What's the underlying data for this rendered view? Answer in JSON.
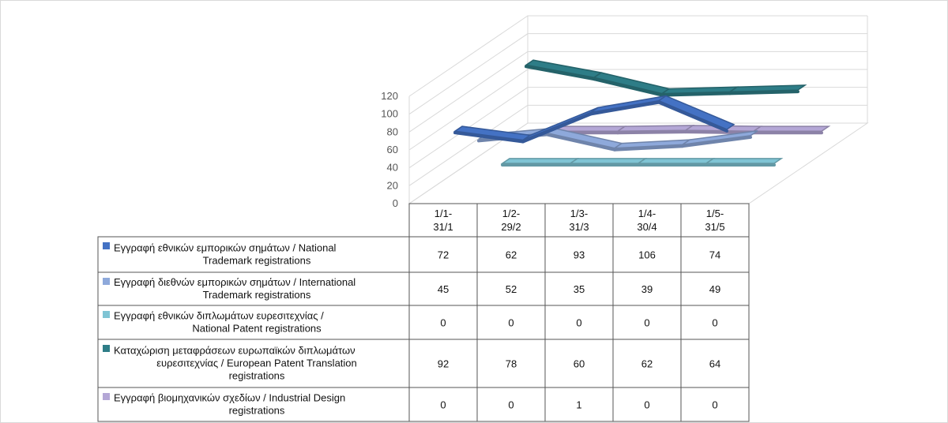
{
  "chart_data": {
    "type": "line",
    "style": "3d-ribbon-with-data-table",
    "title": "",
    "xlabel": "",
    "ylabel": "",
    "ylim": [
      0,
      120
    ],
    "yticks": [
      "0",
      "20",
      "40",
      "60",
      "80",
      "100",
      "120"
    ],
    "categories": [
      "1/1-\n31/1",
      "1/2-\n29/2",
      "1/3-\n31/3",
      "1/4-\n30/4",
      "1/5-\n31/5"
    ],
    "series": [
      {
        "name": "Εγγραφή εθνικών εμπορικών σημάτων / National Trademark registrations",
        "legend_lines": [
          "Εγγραφή εθνικών εμπορικών σημάτων / National",
          "Trademark registrations"
        ],
        "values": [
          72,
          62,
          93,
          106,
          74
        ],
        "value_labels": [
          "72",
          "62",
          "93",
          "106",
          "74"
        ],
        "color": "#4472C4"
      },
      {
        "name": "Εγγραφή διεθνών εμπορικών σημάτων / International Trademark registrations",
        "legend_lines": [
          "Εγγραφή διεθνών εμπορικών σημάτων / International",
          "Trademark registrations"
        ],
        "values": [
          45,
          52,
          35,
          39,
          49
        ],
        "value_labels": [
          "45",
          "52",
          "35",
          "39",
          "49"
        ],
        "color": "#8EA9DB"
      },
      {
        "name": "Εγγραφή εθνικών διπλωμάτων ευρεσιτεχνίας / National Patent registrations",
        "legend_lines": [
          "Εγγραφή εθνικών διπλωμάτων ευρεσιτεχνίας /",
          "National Patent registrations"
        ],
        "values": [
          0,
          0,
          0,
          0,
          0
        ],
        "value_labels": [
          "0",
          "0",
          "0",
          "0",
          "0"
        ],
        "color": "#7FC4D4"
      },
      {
        "name": "Καταχώριση μεταφράσεων ευρωπαϊκών διπλωμάτων ευρεσιτεχνίας / European Patent Translation registrations",
        "legend_lines": [
          "Καταχώριση μεταφράσεων ευρωπαϊκών διπλωμάτων",
          "ευρεσιτεχνίας / European Patent Translation",
          "registrations"
        ],
        "values": [
          92,
          78,
          60,
          62,
          64
        ],
        "value_labels": [
          "92",
          "78",
          "60",
          "62",
          "64"
        ],
        "color": "#2E7D87"
      },
      {
        "name": "Εγγραφή βιομηχανικών σχεδίων / Industrial Design registrations",
        "legend_lines": [
          "Εγγραφή βιομηχανικών σχεδίων / Industrial Design",
          "registrations"
        ],
        "values": [
          0,
          0,
          1,
          0,
          0
        ],
        "value_labels": [
          "0",
          "0",
          "1",
          "0",
          "0"
        ],
        "color": "#B4A7D6"
      }
    ]
  }
}
